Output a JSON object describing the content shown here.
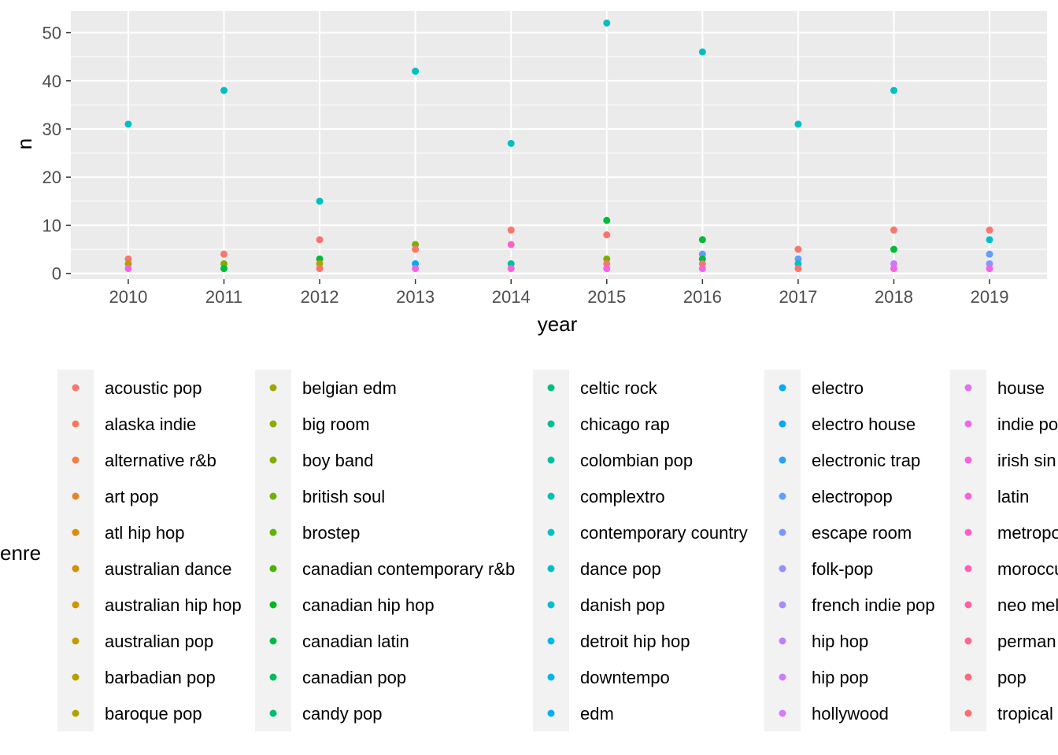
{
  "chart_data": {
    "type": "scatter",
    "xlabel": "year",
    "ylabel": "n",
    "legend_title": "enre",
    "legend_placement": "bottom",
    "grid": true,
    "panel_background": "#ebebeb",
    "x_ticks": [
      2010,
      2011,
      2012,
      2013,
      2014,
      2015,
      2016,
      2017,
      2018,
      2019
    ],
    "y_ticks": [
      0,
      10,
      20,
      30,
      40,
      50
    ],
    "xlim": [
      2009.4,
      2019.6
    ],
    "ylim": [
      -1.2,
      54.5
    ],
    "points": [
      {
        "x": 2010,
        "y": 31,
        "color": "#00BFC4"
      },
      {
        "x": 2010,
        "y": 3,
        "color": "#F8766D"
      },
      {
        "x": 2010,
        "y": 2,
        "color": "#B79F00"
      },
      {
        "x": 2010,
        "y": 1,
        "color": "#F564E3"
      },
      {
        "x": 2011,
        "y": 38,
        "color": "#00BFC4"
      },
      {
        "x": 2011,
        "y": 4,
        "color": "#F8766D"
      },
      {
        "x": 2011,
        "y": 2,
        "color": "#7CAE00"
      },
      {
        "x": 2011,
        "y": 1,
        "color": "#00BA38"
      },
      {
        "x": 2012,
        "y": 15,
        "color": "#00BFC4"
      },
      {
        "x": 2012,
        "y": 7,
        "color": "#F8766D"
      },
      {
        "x": 2012,
        "y": 3,
        "color": "#00BA38"
      },
      {
        "x": 2012,
        "y": 2,
        "color": "#B79F00"
      },
      {
        "x": 2012,
        "y": 1,
        "color": "#F8766D"
      },
      {
        "x": 2013,
        "y": 42,
        "color": "#00BFC4"
      },
      {
        "x": 2013,
        "y": 6,
        "color": "#7CAE00"
      },
      {
        "x": 2013,
        "y": 5,
        "color": "#F8766D"
      },
      {
        "x": 2013,
        "y": 2,
        "color": "#00A9FF"
      },
      {
        "x": 2013,
        "y": 1,
        "color": "#F564E3"
      },
      {
        "x": 2014,
        "y": 27,
        "color": "#00BFC4"
      },
      {
        "x": 2014,
        "y": 9,
        "color": "#F8766D"
      },
      {
        "x": 2014,
        "y": 6,
        "color": "#FF61C3"
      },
      {
        "x": 2014,
        "y": 2,
        "color": "#00C19A"
      },
      {
        "x": 2014,
        "y": 1,
        "color": "#F564E3"
      },
      {
        "x": 2015,
        "y": 52,
        "color": "#00BFC4"
      },
      {
        "x": 2015,
        "y": 11,
        "color": "#00BA38"
      },
      {
        "x": 2015,
        "y": 8,
        "color": "#F8766D"
      },
      {
        "x": 2015,
        "y": 3,
        "color": "#7CAE00"
      },
      {
        "x": 2015,
        "y": 2,
        "color": "#F8766D"
      },
      {
        "x": 2015,
        "y": 1,
        "color": "#F564E3"
      },
      {
        "x": 2016,
        "y": 46,
        "color": "#00BFC4"
      },
      {
        "x": 2016,
        "y": 7,
        "color": "#00BA38"
      },
      {
        "x": 2016,
        "y": 4,
        "color": "#619CFF"
      },
      {
        "x": 2016,
        "y": 3,
        "color": "#00BA38"
      },
      {
        "x": 2016,
        "y": 2,
        "color": "#F8766D"
      },
      {
        "x": 2016,
        "y": 1,
        "color": "#F564E3"
      },
      {
        "x": 2017,
        "y": 31,
        "color": "#00BFC4"
      },
      {
        "x": 2017,
        "y": 5,
        "color": "#F8766D"
      },
      {
        "x": 2017,
        "y": 3,
        "color": "#619CFF"
      },
      {
        "x": 2017,
        "y": 2,
        "color": "#00BFC4"
      },
      {
        "x": 2017,
        "y": 1,
        "color": "#F8766D"
      },
      {
        "x": 2018,
        "y": 38,
        "color": "#00BFC4"
      },
      {
        "x": 2018,
        "y": 9,
        "color": "#F8766D"
      },
      {
        "x": 2018,
        "y": 5,
        "color": "#00BA38"
      },
      {
        "x": 2018,
        "y": 2,
        "color": "#C77CFF"
      },
      {
        "x": 2018,
        "y": 1,
        "color": "#F564E3"
      },
      {
        "x": 2019,
        "y": 9,
        "color": "#F8766D"
      },
      {
        "x": 2019,
        "y": 7,
        "color": "#00BFC4"
      },
      {
        "x": 2019,
        "y": 4,
        "color": "#619CFF"
      },
      {
        "x": 2019,
        "y": 2,
        "color": "#8B93FF"
      },
      {
        "x": 2019,
        "y": 1,
        "color": "#F564E3"
      }
    ],
    "legend_columns": [
      [
        {
          "label": "acoustic pop",
          "color": "#F8766D"
        },
        {
          "label": "alaska indie",
          "color": "#F47A5A"
        },
        {
          "label": "alternative r&b",
          "color": "#EE7F47"
        },
        {
          "label": "art pop",
          "color": "#E88526"
        },
        {
          "label": "atl hip hop",
          "color": "#DF8B00"
        },
        {
          "label": "australian dance",
          "color": "#D69100"
        },
        {
          "label": "australian hip hop",
          "color": "#CD9600"
        },
        {
          "label": "australian pop",
          "color": "#C39A00"
        },
        {
          "label": "barbadian pop",
          "color": "#B79F00"
        },
        {
          "label": "baroque pop",
          "color": "#ABA300"
        }
      ],
      [
        {
          "label": "belgian edm",
          "color": "#9FA600"
        },
        {
          "label": "big room",
          "color": "#92A900"
        },
        {
          "label": "boy band",
          "color": "#83AD00"
        },
        {
          "label": "british soul",
          "color": "#72B000"
        },
        {
          "label": "brostep",
          "color": "#5EB300"
        },
        {
          "label": "canadian contemporary r&b",
          "color": "#42B600"
        },
        {
          "label": "canadian hip hop",
          "color": "#00B81F"
        },
        {
          "label": "canadian latin",
          "color": "#00BA45"
        },
        {
          "label": "canadian pop",
          "color": "#00BC5B"
        },
        {
          "label": "candy pop",
          "color": "#00BD70"
        }
      ],
      [
        {
          "label": "celtic rock",
          "color": "#00BE82"
        },
        {
          "label": "chicago rap",
          "color": "#00BF93"
        },
        {
          "label": "colombian pop",
          "color": "#00C0A3"
        },
        {
          "label": "complextro",
          "color": "#00C0B2"
        },
        {
          "label": "contemporary country",
          "color": "#00C0C0"
        },
        {
          "label": "dance pop",
          "color": "#00BFC4"
        },
        {
          "label": "danish pop",
          "color": "#00BCD6"
        },
        {
          "label": "detroit hip hop",
          "color": "#00B9E3"
        },
        {
          "label": "downtempo",
          "color": "#00B5EE"
        },
        {
          "label": "edm",
          "color": "#00B0F6"
        }
      ],
      [
        {
          "label": "electro",
          "color": "#00ABFD"
        },
        {
          "label": "electro house",
          "color": "#00A5FF"
        },
        {
          "label": "electronic trap",
          "color": "#2A9FFF"
        },
        {
          "label": "electropop",
          "color": "#619CFF"
        },
        {
          "label": "escape room",
          "color": "#7C96FF"
        },
        {
          "label": "folk-pop",
          "color": "#938FFF"
        },
        {
          "label": "french indie pop",
          "color": "#A889FF"
        },
        {
          "label": "hip hop",
          "color": "#BA83FF"
        },
        {
          "label": "hip pop",
          "color": "#CA7DFF"
        },
        {
          "label": "hollywood",
          "color": "#D877FF"
        }
      ],
      [
        {
          "label": "house",
          "color": "#E36FF8"
        },
        {
          "label": "indie po",
          "color": "#EC69EF"
        },
        {
          "label": "irish sin",
          "color": "#F464E3"
        },
        {
          "label": "latin",
          "color": "#F962D5"
        },
        {
          "label": "metropo",
          "color": "#FD61C5"
        },
        {
          "label": "moroccu",
          "color": "#FF61B4"
        },
        {
          "label": "neo mel",
          "color": "#FF63A2"
        },
        {
          "label": "perman",
          "color": "#FF6690"
        },
        {
          "label": "pop",
          "color": "#FE6A7D"
        },
        {
          "label": "tropical",
          "color": "#FB6F6A"
        }
      ]
    ]
  }
}
